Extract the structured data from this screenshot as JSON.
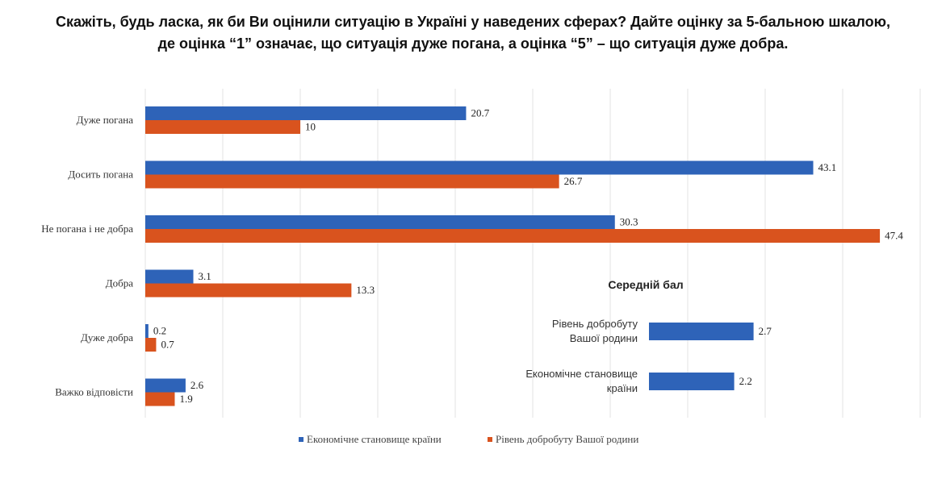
{
  "title_line1": "Скажіть, будь ласка, як би Ви оцінили ситуацію в Україні у наведених сферах? Дайте оцінку за 5-бальною шкалою,",
  "title_line2": "де оцінка “1” означає, що ситуація дуже погана, а оцінка “5” – що ситуація дуже добра.",
  "colors": {
    "blue": "#2e63b8",
    "orange": "#d9531e"
  },
  "chart_data": [
    {
      "type": "bar",
      "orientation": "horizontal",
      "categories": [
        "Дуже погана",
        "Досить погана",
        "Не погана і не добра",
        "Добра",
        "Дуже  добра",
        "Важко відповісти"
      ],
      "series": [
        {
          "name": "Економічне становище країни",
          "values": [
            20.7,
            43.1,
            30.3,
            3.1,
            0.2,
            2.6
          ]
        },
        {
          "name": "Рівень добробуту Вашої родини",
          "values": [
            10,
            26.7,
            47.4,
            13.3,
            0.7,
            1.9
          ]
        }
      ],
      "value_labels": [
        [
          "20.7",
          "43.1",
          "30.3",
          "3.1",
          "0.2",
          "2.6"
        ],
        [
          "10",
          "26.7",
          "47.4",
          "13.3",
          "0.7",
          "1.9"
        ]
      ],
      "xlim": [
        0,
        50
      ],
      "grid": true,
      "legend": "bottom"
    },
    {
      "type": "bar",
      "orientation": "horizontal",
      "title": "Середній бал",
      "categories": [
        "Рівень добробуту Вашої родини",
        "Економічне становище країни"
      ],
      "category_lines": [
        [
          "Рівень добробуту",
          "Вашої родини"
        ],
        [
          "Економічне становище",
          "країни"
        ]
      ],
      "values": [
        2.7,
        2.2
      ],
      "value_labels": [
        "2.7",
        "2.2"
      ],
      "xlim": [
        0,
        5
      ]
    }
  ]
}
